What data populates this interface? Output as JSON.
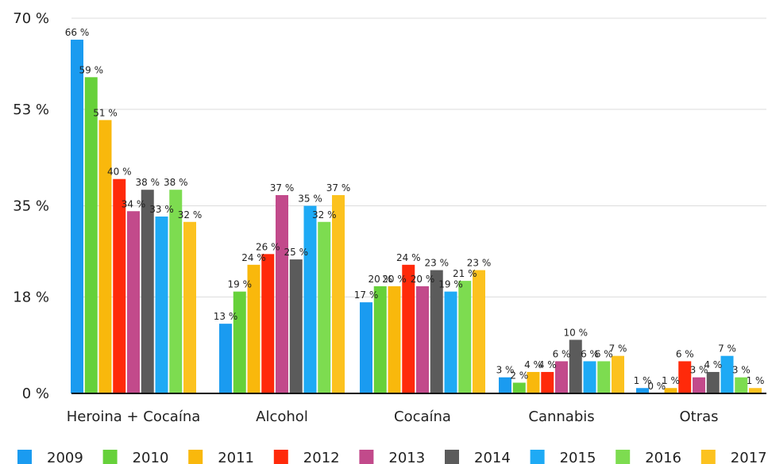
{
  "chart_data": {
    "type": "bar",
    "categories": [
      "Heroina + Cocaína",
      "Alcohol",
      "Cocaína",
      "Cannabis",
      "Otras"
    ],
    "series": [
      {
        "name": "2009",
        "color": "#1a9bf0",
        "values": [
          66,
          13,
          17,
          3,
          1
        ]
      },
      {
        "name": "2010",
        "color": "#66d13a",
        "values": [
          59,
          19,
          20,
          2,
          0
        ]
      },
      {
        "name": "2011",
        "color": "#f9b80c",
        "values": [
          51,
          24,
          20,
          4,
          1
        ]
      },
      {
        "name": "2012",
        "color": "#ff2a0a",
        "values": [
          40,
          26,
          24,
          4,
          6
        ]
      },
      {
        "name": "2013",
        "color": "#c24a8b",
        "values": [
          34,
          37,
          20,
          6,
          3
        ]
      },
      {
        "name": "2014",
        "color": "#5b5b5b",
        "values": [
          38,
          25,
          23,
          10,
          4
        ]
      },
      {
        "name": "2015",
        "color": "#1eaaf5",
        "values": [
          33,
          35,
          19,
          6,
          7
        ]
      },
      {
        "name": "2016",
        "color": "#7ddc50",
        "values": [
          38,
          32,
          21,
          6,
          3
        ]
      },
      {
        "name": "2017",
        "color": "#fcc21f",
        "values": [
          32,
          37,
          23,
          7,
          1
        ]
      }
    ],
    "yticks": [
      {
        "value": 0,
        "label": "0 %"
      },
      {
        "value": 18,
        "label": "18 %"
      },
      {
        "value": 35,
        "label": "35 %"
      },
      {
        "value": 53,
        "label": "53 %"
      },
      {
        "value": 70,
        "label": "70 %"
      }
    ],
    "ylim": [
      0,
      70
    ],
    "value_suffix": " %",
    "grid": true,
    "legend_position": "bottom"
  }
}
